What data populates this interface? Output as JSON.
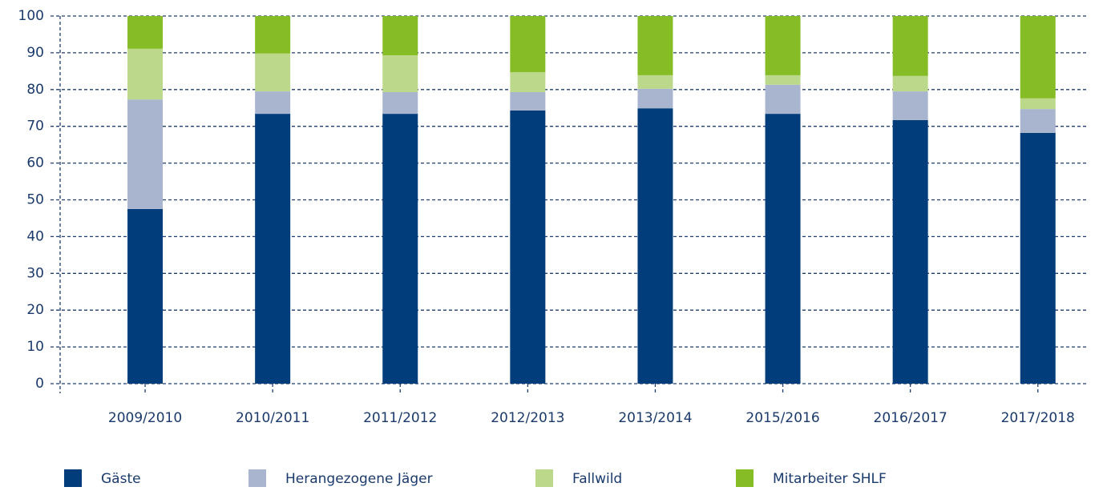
{
  "chart_data": {
    "type": "stacked_bar",
    "categories": [
      "2009/2010",
      "2010/2011",
      "2011/2012",
      "2012/2013",
      "2013/2014",
      "2015/2016",
      "2016/2017",
      "2017/2018"
    ],
    "series": [
      {
        "name": "Gäste",
        "color": "#003d7a",
        "values": [
          47.5,
          73.4,
          73.4,
          74.3,
          74.9,
          73.4,
          71.7,
          68.2
        ]
      },
      {
        "name": "Herangezogene Jäger",
        "color": "#a9b5cf",
        "values": [
          29.8,
          6.1,
          5.9,
          5.0,
          5.3,
          7.9,
          7.8,
          6.5
        ]
      },
      {
        "name": "Fallwild",
        "color": "#bcd88a",
        "values": [
          13.8,
          10.3,
          10.0,
          5.4,
          3.7,
          2.6,
          4.2,
          2.9
        ]
      },
      {
        "name": "Mitarbeiter SHLF",
        "color": "#86bc25",
        "values": [
          8.9,
          10.2,
          10.7,
          15.3,
          16.1,
          16.1,
          16.3,
          22.4
        ]
      }
    ],
    "ylim": [
      0,
      100
    ],
    "yticks": [
      0,
      10,
      20,
      30,
      40,
      50,
      60,
      70,
      80,
      90,
      100
    ],
    "grid": true
  }
}
